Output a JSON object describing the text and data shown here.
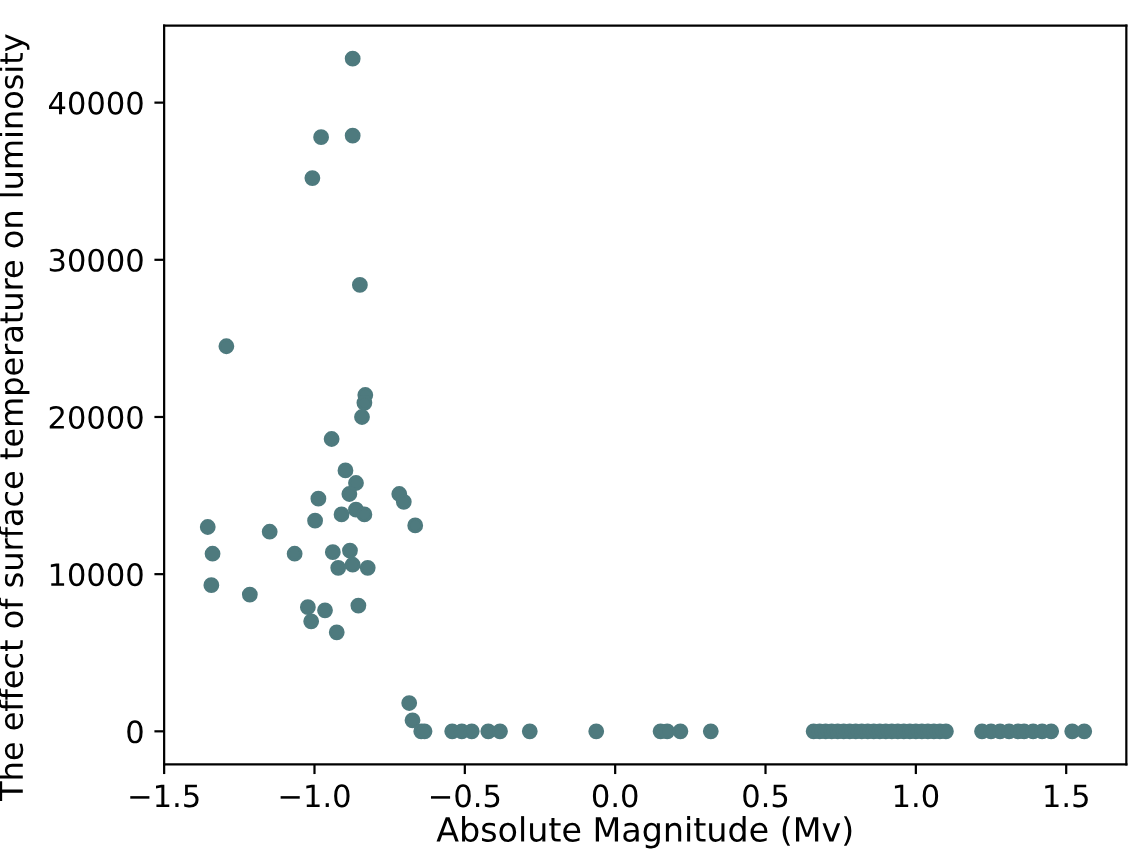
{
  "chart_data": {
    "type": "scatter",
    "xlabel": "Absolute Magnitude (Mv)",
    "ylabel": "The effect of surface temperature on luminosity",
    "xlim": [
      -1.5,
      1.7
    ],
    "ylim": [
      -2100,
      44900
    ],
    "xticks": [
      {
        "value": -1.5,
        "label": "−1.5"
      },
      {
        "value": -1.0,
        "label": "−1.0"
      },
      {
        "value": -0.5,
        "label": "−0.5"
      },
      {
        "value": 0.0,
        "label": "0.0"
      },
      {
        "value": 0.5,
        "label": "0.5"
      },
      {
        "value": 1.0,
        "label": "1.0"
      },
      {
        "value": 1.5,
        "label": "1.5"
      }
    ],
    "yticks": [
      0,
      10000,
      20000,
      30000,
      40000
    ],
    "grid": false,
    "marker": "circle",
    "series": [
      {
        "color": "#4e7a7e",
        "x": [
          -0.873,
          -0.978,
          -0.873,
          -1.007,
          -0.849,
          -1.293,
          -0.831,
          -0.834,
          -0.842,
          -0.943,
          -0.897,
          -0.862,
          -0.884,
          -0.987,
          -0.718,
          -0.703,
          -0.862,
          -0.834,
          -0.91,
          -0.998,
          -1.355,
          -0.665,
          -1.149,
          -1.339,
          -1.066,
          -0.939,
          -0.882,
          -0.873,
          -0.921,
          -0.823,
          -1.343,
          -1.215,
          -1.022,
          -0.965,
          -0.854,
          -1.011,
          -0.926,
          -0.685,
          -0.674,
          -0.645,
          -0.634,
          -0.542,
          -0.51,
          -0.477,
          -0.422,
          -0.383,
          -0.284,
          -0.063,
          0.151,
          0.173,
          0.217,
          0.318,
          0.66,
          0.68,
          0.7,
          0.72,
          0.74,
          0.76,
          0.78,
          0.8,
          0.82,
          0.84,
          0.86,
          0.88,
          0.9,
          0.92,
          0.94,
          0.96,
          0.98,
          1.0,
          1.02,
          1.04,
          1.06,
          1.08,
          1.1,
          1.22,
          1.25,
          1.28,
          1.31,
          1.34,
          1.36,
          1.39,
          1.42,
          1.45,
          1.52,
          1.56
        ],
        "values": [
          42800,
          37800,
          37900,
          35200,
          28400,
          24500,
          21400,
          20900,
          20000,
          18600,
          16600,
          15800,
          15100,
          14800,
          15100,
          14600,
          14100,
          13800,
          13800,
          13400,
          13000,
          13100,
          12700,
          11300,
          11300,
          11400,
          11500,
          10600,
          10400,
          10400,
          9300,
          8700,
          7900,
          7700,
          8000,
          7000,
          6300,
          1800,
          700,
          0,
          0,
          0,
          0,
          0,
          0,
          0,
          0,
          0,
          0,
          0,
          0,
          0,
          0,
          0,
          0,
          0,
          0,
          0,
          0,
          0,
          0,
          0,
          0,
          0,
          0,
          0,
          0,
          0,
          0,
          0,
          0,
          0,
          0,
          0,
          0,
          0,
          0,
          0,
          0,
          0,
          0,
          0,
          0,
          0,
          0,
          0
        ]
      }
    ]
  }
}
